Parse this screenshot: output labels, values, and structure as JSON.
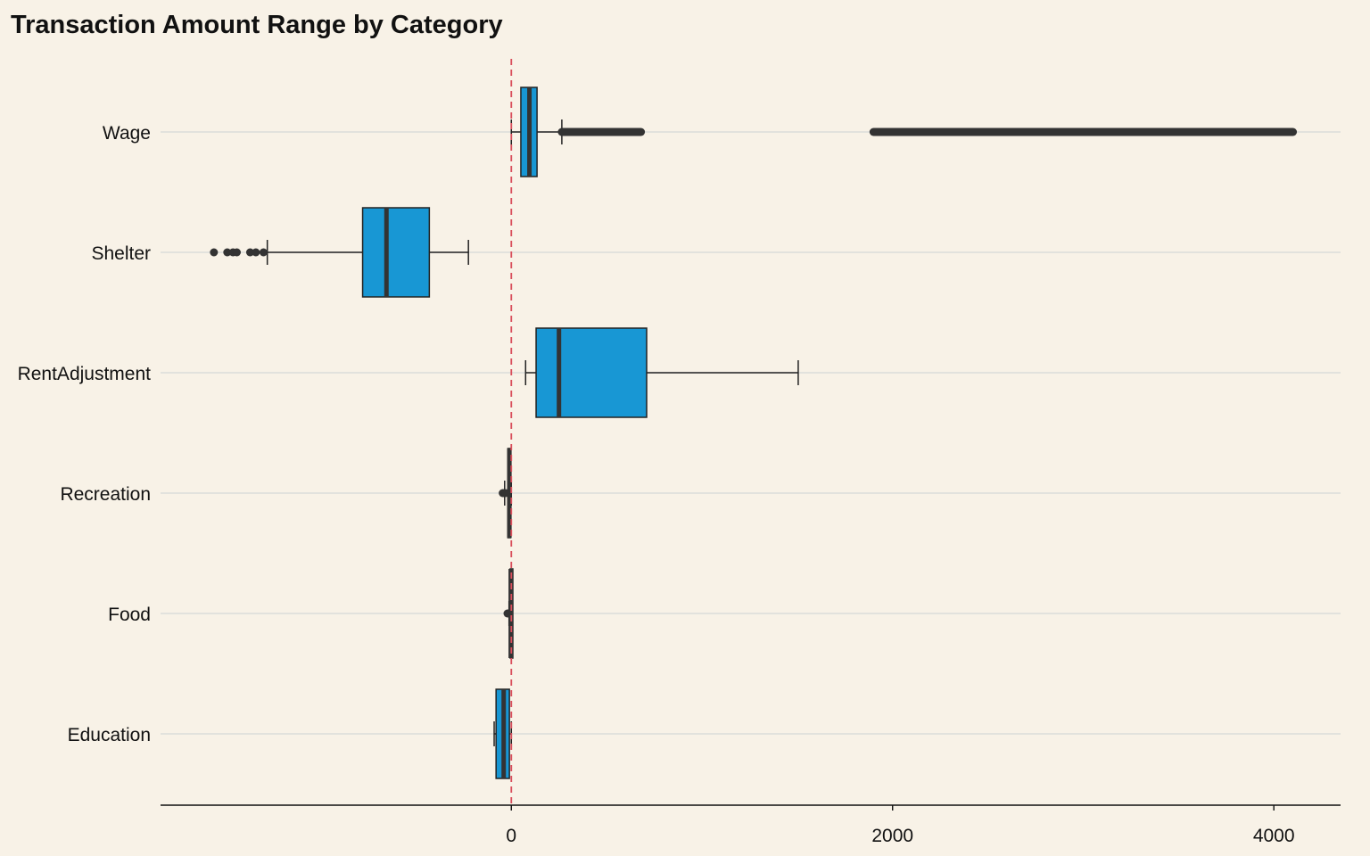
{
  "chart_data": {
    "type": "boxplot",
    "orientation": "horizontal",
    "title": "Transaction Amount Range by Category",
    "xlabel": "",
    "ylabel": "",
    "categories": [
      "Wage",
      "Shelter",
      "RentAdjustment",
      "Recreation",
      "Food",
      "Education"
    ],
    "xlim": [
      -1840,
      4350
    ],
    "x_ticks": [
      0,
      2000,
      4000
    ],
    "reference_line": {
      "x": 0,
      "style": "dashed",
      "color": "#D94F5C"
    },
    "grid": "horizontal",
    "box_color": "#1897D4",
    "series": [
      {
        "category": "Wage",
        "whisker_low": 0,
        "q1": 50,
        "median": 95,
        "q3": 135,
        "whisker_high": 265,
        "outlier_segments": [
          [
            265,
            680
          ],
          [
            1900,
            4100
          ]
        ]
      },
      {
        "category": "Shelter",
        "whisker_low": -1280,
        "q1": -780,
        "median": -655,
        "q3": -430,
        "whisker_high": -225,
        "outliers": [
          -1560,
          -1490,
          -1460,
          -1440,
          -1370,
          -1340,
          -1300
        ]
      },
      {
        "category": "RentAdjustment",
        "whisker_low": 75,
        "q1": 130,
        "median": 250,
        "q3": 710,
        "whisker_high": 1505,
        "outliers": []
      },
      {
        "category": "Recreation",
        "whisker_low": -35,
        "q1": -18,
        "median": -10,
        "q3": -3,
        "whisker_high": 0,
        "outliers": [
          -45,
          -40,
          -30
        ]
      },
      {
        "category": "Food",
        "whisker_low": -12,
        "q1": -6,
        "median": -3,
        "q3": -1,
        "whisker_high": 0,
        "outliers": [
          -20,
          -15,
          -10
        ]
      },
      {
        "category": "Education",
        "whisker_low": -90,
        "q1": -80,
        "median": -40,
        "q3": -10,
        "whisker_high": 0,
        "outliers": []
      }
    ]
  }
}
